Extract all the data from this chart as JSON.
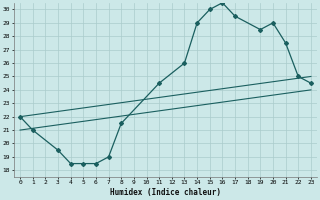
{
  "xlabel": "Humidex (Indice chaleur)",
  "background_color": "#cce8e8",
  "grid_color": "#aacccc",
  "line_color": "#1a5f5f",
  "xlim": [
    -0.5,
    23.5
  ],
  "ylim": [
    17.5,
    30.5
  ],
  "xticks": [
    0,
    1,
    2,
    3,
    4,
    5,
    6,
    7,
    8,
    9,
    10,
    11,
    12,
    13,
    14,
    15,
    16,
    17,
    18,
    19,
    20,
    21,
    22,
    23
  ],
  "yticks": [
    18,
    19,
    20,
    21,
    22,
    23,
    24,
    25,
    26,
    27,
    28,
    29,
    30
  ],
  "line1_x": [
    0,
    1,
    3,
    4,
    5,
    6,
    7,
    8,
    11,
    13,
    14,
    15,
    16,
    17,
    19,
    20,
    21,
    22,
    23
  ],
  "line1_y": [
    22,
    21,
    19.5,
    18.5,
    18.5,
    18.5,
    19,
    21.5,
    24.5,
    26,
    29,
    30,
    30.5,
    29.5,
    28.5,
    29,
    27.5,
    25,
    24.5
  ],
  "line2_x": [
    0,
    23
  ],
  "line2_y": [
    21,
    24
  ],
  "line3_x": [
    0,
    23
  ],
  "line3_y": [
    22,
    25
  ]
}
